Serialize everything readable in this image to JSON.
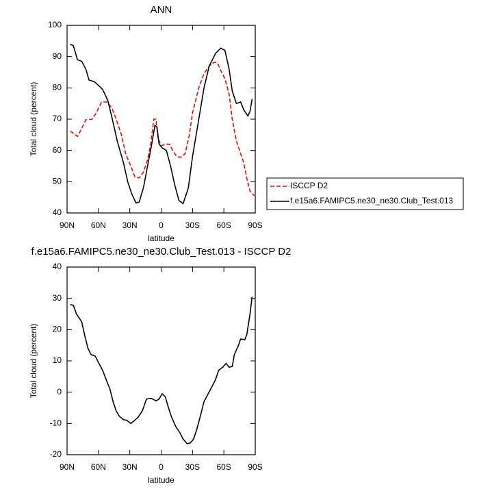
{
  "chart_data": [
    {
      "type": "line",
      "title": "ANN",
      "xlabel": "latitude",
      "ylabel": "Total cloud (percent)",
      "xlim": [
        90,
        -90
      ],
      "ylim": [
        40,
        100
      ],
      "xticks": [
        {
          "value": 90,
          "label": "90N"
        },
        {
          "value": 60,
          "label": "60N"
        },
        {
          "value": 30,
          "label": "30N"
        },
        0,
        {
          "value": -30,
          "label": "30S"
        },
        {
          "value": -60,
          "label": "60S"
        },
        {
          "value": -90,
          "label": "90S"
        }
      ],
      "yticks": [
        40,
        50,
        60,
        70,
        80,
        90,
        100
      ],
      "legend": "right",
      "series": [
        {
          "name": "ISCCP D2",
          "color": "#ff0000",
          "dashed": true,
          "x": [
            87,
            84,
            80,
            76,
            72,
            66,
            62,
            57,
            52,
            47,
            43,
            38,
            34,
            29,
            25,
            21,
            17,
            13,
            10,
            7,
            5,
            3,
            0,
            -4,
            -8,
            -11,
            -15,
            -19,
            -23,
            -27,
            -30,
            -36,
            -41,
            -46,
            -51,
            -54,
            -57,
            -61,
            -65,
            -68,
            -72,
            -75,
            -79,
            -82,
            -85,
            -89
          ],
          "values": [
            66.2,
            65.5,
            64.5,
            67,
            69.8,
            70,
            72,
            75.5,
            75.5,
            73.5,
            70,
            65,
            59,
            55,
            51.5,
            51.2,
            53,
            57,
            62,
            70,
            70,
            64,
            61.5,
            62,
            62,
            60,
            58,
            57.8,
            59,
            65,
            72,
            80,
            84.5,
            87,
            88.2,
            88,
            85.5,
            83,
            78,
            70,
            63,
            60,
            56,
            51,
            47,
            45.5
          ]
        },
        {
          "name": "f.e15a6.FAMIPC5.ne30_ne30.Club_Test.013",
          "color": "#000000",
          "dashed": false,
          "x": [
            87,
            84,
            80,
            76,
            72,
            69,
            64,
            59,
            56,
            51,
            46,
            42,
            36,
            32,
            28,
            24,
            21,
            17,
            13,
            9,
            6,
            4,
            2,
            -1,
            -5,
            -9,
            -13,
            -17,
            -21,
            -26,
            -30,
            -36,
            -41,
            -46,
            -52,
            -57,
            -61,
            -65,
            -68,
            -72,
            -76,
            -79,
            -83,
            -85,
            -87
          ],
          "values": [
            94,
            93.5,
            89,
            88.5,
            86,
            82.5,
            82,
            80.5,
            79.5,
            76,
            69,
            63,
            56,
            50,
            46,
            43.2,
            43.5,
            48,
            55,
            62,
            68,
            67.5,
            62,
            60.8,
            60,
            55,
            49,
            44,
            43,
            48,
            58,
            70,
            80,
            87,
            91,
            92.7,
            92,
            86,
            79,
            75,
            75.5,
            73,
            71,
            72.5,
            76.5
          ]
        }
      ]
    },
    {
      "type": "line",
      "title": "f.e15a6.FAMIPC5.ne30_ne30.Club_Test.013 - ISCCP D2",
      "xlabel": "latitude",
      "ylabel": "Total cloud (percent)",
      "xlim": [
        90,
        -90
      ],
      "ylim": [
        -20,
        40
      ],
      "xticks": [
        {
          "value": 90,
          "label": "90N"
        },
        {
          "value": 60,
          "label": "60N"
        },
        {
          "value": 30,
          "label": "30N"
        },
        0,
        {
          "value": -30,
          "label": "30S"
        },
        {
          "value": -60,
          "label": "60S"
        },
        {
          "value": -90,
          "label": "90S"
        }
      ],
      "yticks": [
        -20,
        -10,
        0,
        10,
        20,
        30,
        40
      ],
      "series": [
        {
          "color": "#000000",
          "dashed": false,
          "x": [
            87,
            84,
            81,
            76,
            73,
            70,
            67,
            63,
            60,
            56,
            52,
            49,
            46,
            43,
            40,
            36,
            33,
            29,
            26,
            22,
            18,
            14,
            10,
            8,
            5,
            2,
            -1,
            -4,
            -7,
            -10,
            -14,
            -18,
            -21,
            -25,
            -28,
            -31,
            -34,
            -38,
            -41,
            -45,
            -49,
            -52,
            -55,
            -59,
            -62,
            -65,
            -68,
            -70,
            -74,
            -76,
            -80,
            -82,
            -85,
            -87
          ],
          "values": [
            28,
            27.8,
            25,
            22.5,
            18,
            14,
            12,
            11.5,
            9.5,
            7,
            3.5,
            1,
            -3,
            -6,
            -7.7,
            -8.8,
            -9,
            -10,
            -9.2,
            -8,
            -6,
            -2.2,
            -2,
            -2.2,
            -2.8,
            -2.2,
            -0.5,
            -1.5,
            -5,
            -8,
            -11,
            -13,
            -15,
            -16.5,
            -16.2,
            -15,
            -12,
            -7,
            -3,
            -0.5,
            2,
            4,
            7,
            8,
            9.2,
            8,
            8.2,
            12,
            15,
            17,
            16.8,
            18.5,
            25,
            30.5
          ]
        }
      ]
    }
  ]
}
